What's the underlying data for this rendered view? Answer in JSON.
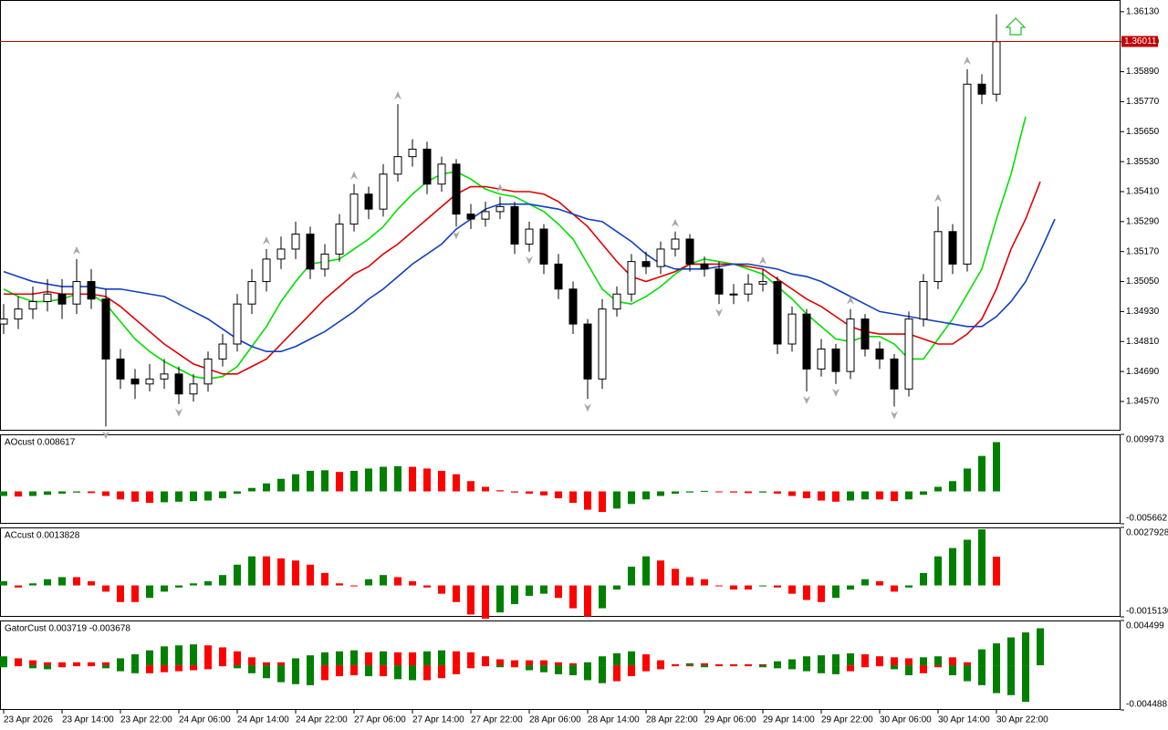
{
  "chart_data": [
    {
      "type": "candlestick",
      "categories": [
        "23 Apr 2026",
        null,
        null,
        null,
        "23 Apr 14:00",
        null,
        null,
        null,
        "23 Apr 22:00",
        null,
        null,
        null,
        "24 Apr 06:00",
        null,
        null,
        null,
        "24 Apr 14:00",
        null,
        null,
        null,
        "24 Apr 22:00",
        null,
        null,
        null,
        "27 Apr 06:00",
        null,
        null,
        null,
        "27 Apr 14:00",
        null,
        null,
        null,
        "27 Apr 22:00",
        null,
        null,
        null,
        "28 Apr 06:00",
        null,
        null,
        null,
        "28 Apr 14:00",
        null,
        null,
        null,
        "28 Apr 22:00",
        null,
        null,
        null,
        "29 Apr 06:00",
        null,
        null,
        null,
        "29 Apr 14:00",
        null,
        null,
        null,
        "29 Apr 22:00",
        null,
        null,
        null,
        "30 Apr 06:00",
        null,
        null,
        null,
        "30 Apr 14:00",
        null,
        null,
        null,
        "30 Apr 22:00",
        null,
        null,
        null,
        null
      ],
      "open": [
        1.3488,
        1.349,
        1.3494,
        1.3497,
        1.35,
        1.3496,
        1.3505,
        1.3498,
        1.3474,
        1.3466,
        1.3464,
        1.3466,
        1.3468,
        1.346,
        1.3464,
        1.3474,
        1.348,
        1.3496,
        1.3505,
        1.3514,
        1.3518,
        1.3524,
        1.351,
        1.3516,
        1.3528,
        1.354,
        1.3534,
        1.3548,
        1.3555,
        1.3558,
        1.3544,
        1.3552,
        1.3532,
        1.353,
        1.3533,
        1.3535,
        1.352,
        1.3526,
        1.3512,
        1.3502,
        1.3488,
        1.3466,
        1.3494,
        1.35,
        1.3513,
        1.3511,
        1.3518,
        1.3522,
        1.3512,
        1.351,
        1.35,
        1.35,
        1.3504,
        1.3505,
        1.348,
        1.3492,
        1.347,
        1.3478,
        1.3469,
        1.349,
        1.3478,
        1.3474,
        1.3462,
        1.349,
        1.3505,
        1.3525,
        1.3512,
        1.3584,
        1.358,
        null,
        null,
        null,
        null
      ],
      "high": [
        1.3496,
        1.3499,
        1.3503,
        1.3506,
        1.3506,
        1.3514,
        1.351,
        1.3502,
        1.3478,
        1.347,
        1.3472,
        1.3474,
        1.3471,
        1.3468,
        1.3477,
        1.3484,
        1.35,
        1.351,
        1.3518,
        1.3523,
        1.3529,
        1.3527,
        1.352,
        1.3532,
        1.3544,
        1.3543,
        1.3552,
        1.3576,
        1.3562,
        1.3561,
        1.3555,
        1.3554,
        1.3536,
        1.3537,
        1.3539,
        1.3537,
        1.3529,
        1.3528,
        1.3516,
        1.3505,
        1.349,
        1.3498,
        1.3503,
        1.3516,
        1.3517,
        1.3521,
        1.3525,
        1.3524,
        1.3515,
        1.3513,
        1.3504,
        1.3508,
        1.351,
        1.3507,
        1.3495,
        1.3494,
        1.3482,
        1.348,
        1.3494,
        1.3492,
        1.3481,
        1.3476,
        1.3493,
        1.3508,
        1.3535,
        1.3528,
        1.359,
        1.3588,
        1.3612,
        null,
        null,
        null,
        null
      ],
      "low": [
        1.3484,
        1.3486,
        1.349,
        1.3493,
        1.349,
        1.3492,
        1.3494,
        1.3447,
        1.3462,
        1.3458,
        1.3461,
        1.3462,
        1.3456,
        1.3457,
        1.3461,
        1.3471,
        1.3477,
        1.3492,
        1.3501,
        1.351,
        1.3514,
        1.3506,
        1.3507,
        1.3513,
        1.3525,
        1.353,
        1.3531,
        1.3545,
        1.3551,
        1.354,
        1.3541,
        1.3527,
        1.3526,
        1.3527,
        1.353,
        1.3516,
        1.3517,
        1.3508,
        1.3498,
        1.3484,
        1.3458,
        1.3462,
        1.3491,
        1.3497,
        1.3508,
        1.3508,
        1.3515,
        1.3509,
        1.3507,
        1.3496,
        1.3496,
        1.3497,
        1.3501,
        1.3476,
        1.3477,
        1.3461,
        1.3467,
        1.3464,
        1.3466,
        1.3475,
        1.347,
        1.3455,
        1.3459,
        1.3487,
        1.3502,
        1.3508,
        1.3509,
        1.3576,
        1.3577,
        null,
        null,
        null,
        null
      ],
      "close": [
        1.349,
        1.3494,
        1.3497,
        1.35,
        1.3496,
        1.3505,
        1.3498,
        1.3474,
        1.3466,
        1.3464,
        1.3466,
        1.3468,
        1.346,
        1.3464,
        1.3474,
        1.348,
        1.3496,
        1.3505,
        1.3514,
        1.3518,
        1.3524,
        1.351,
        1.3516,
        1.3528,
        1.354,
        1.3534,
        1.3548,
        1.3555,
        1.3558,
        1.3544,
        1.3552,
        1.3532,
        1.353,
        1.3533,
        1.3535,
        1.352,
        1.3526,
        1.3512,
        1.3502,
        1.3488,
        1.3466,
        1.3494,
        1.35,
        1.3513,
        1.3511,
        1.3518,
        1.3522,
        1.3512,
        1.351,
        1.35,
        1.35,
        1.3504,
        1.3505,
        1.348,
        1.3492,
        1.347,
        1.3478,
        1.3469,
        1.349,
        1.3478,
        1.3474,
        1.3462,
        1.349,
        1.3505,
        1.3525,
        1.3512,
        1.3584,
        1.358,
        1.3601,
        null,
        null,
        null,
        null
      ],
      "series": [
        {
          "color": "#00e000",
          "values": [
            1.3502,
            1.3499,
            1.3497,
            1.3497,
            1.3498,
            1.35,
            1.35,
            1.3496,
            1.3489,
            1.3482,
            1.3477,
            1.3473,
            1.347,
            1.3467,
            1.3466,
            1.3467,
            1.3471,
            1.3479,
            1.3487,
            1.3497,
            1.3505,
            1.3512,
            1.3513,
            1.3514,
            1.3518,
            1.3522,
            1.3527,
            1.3534,
            1.354,
            1.3545,
            1.3548,
            1.3549,
            1.3546,
            1.3542,
            1.354,
            1.3539,
            1.3536,
            1.3533,
            1.3528,
            1.3522,
            1.3512,
            1.3502,
            1.3497,
            1.3496,
            1.3499,
            1.3503,
            1.3508,
            1.3512,
            1.3514,
            1.3513,
            1.3512,
            1.351,
            1.3508,
            1.3503,
            1.3498,
            1.3492,
            1.3487,
            1.3482,
            1.3481,
            1.3483,
            1.3483,
            1.348,
            1.3474,
            1.3474,
            1.3482,
            1.349,
            1.35,
            1.351,
            1.353,
            1.3548,
            1.3571,
            null,
            null
          ]
        },
        {
          "color": "#e00000",
          "values": [
            1.35,
            1.35,
            1.35,
            1.3501,
            1.35,
            1.35,
            1.35,
            1.3499,
            1.3495,
            1.349,
            1.3485,
            1.348,
            1.3476,
            1.3472,
            1.347,
            1.3468,
            1.3468,
            1.3471,
            1.3474,
            1.348,
            1.3486,
            1.3492,
            1.3498,
            1.3503,
            1.3508,
            1.3511,
            1.3516,
            1.352,
            1.3525,
            1.353,
            1.3535,
            1.354,
            1.3543,
            1.3543,
            1.3542,
            1.3541,
            1.3541,
            1.354,
            1.3537,
            1.3532,
            1.3527,
            1.352,
            1.3513,
            1.3507,
            1.3505,
            1.3507,
            1.3509,
            1.3512,
            1.3512,
            1.3512,
            1.3512,
            1.3511,
            1.351,
            1.3506,
            1.3502,
            1.3498,
            1.3495,
            1.3491,
            1.3487,
            1.3485,
            1.3484,
            1.3484,
            1.3484,
            1.3482,
            1.348,
            1.348,
            1.3484,
            1.349,
            1.3502,
            1.3518,
            1.353,
            1.3545,
            null
          ]
        },
        {
          "color": "#1040c0",
          "values": [
            1.3509,
            1.3507,
            1.3505,
            1.3504,
            1.3503,
            1.3503,
            1.3503,
            1.3502,
            1.3502,
            1.3501,
            1.35,
            1.3499,
            1.3496,
            1.3493,
            1.349,
            1.3486,
            1.3482,
            1.3479,
            1.3477,
            1.3477,
            1.3479,
            1.3482,
            1.3485,
            1.3489,
            1.3493,
            1.3498,
            1.3502,
            1.3507,
            1.3512,
            1.3516,
            1.352,
            1.3526,
            1.353,
            1.3534,
            1.3536,
            1.3536,
            1.3536,
            1.3535,
            1.3534,
            1.3532,
            1.353,
            1.3529,
            1.3525,
            1.3521,
            1.3516,
            1.3512,
            1.351,
            1.351,
            1.351,
            1.3511,
            1.3512,
            1.3512,
            1.3511,
            1.351,
            1.3508,
            1.3507,
            1.3505,
            1.3502,
            1.3499,
            1.3496,
            1.3493,
            1.3492,
            1.3491,
            1.349,
            1.3489,
            1.3488,
            1.3487,
            1.3487,
            1.3491,
            1.3497,
            1.3505,
            1.3517,
            1.353
          ]
        }
      ],
      "fractals_up": [
        5,
        18,
        24,
        27,
        34,
        46,
        52,
        58,
        64,
        66
      ],
      "fractals_down": [
        7,
        12,
        31,
        36,
        40,
        49,
        55,
        57,
        61
      ],
      "fractal_color": "#a8a8a8",
      "bull_color": "#ffffff",
      "bear_color": "#000000",
      "ylim": [
        1.34453,
        1.36177
      ],
      "yticks": [
        {
          "value": 1.3613,
          "label": "1.36130"
        },
        {
          "value": 1.3601,
          "label": "1.36010"
        },
        {
          "value": 1.3589,
          "label": "1.35890"
        },
        {
          "value": 1.3577,
          "label": "1.35770"
        },
        {
          "value": 1.3565,
          "label": "1.35650"
        },
        {
          "value": 1.3553,
          "label": "1.35530"
        },
        {
          "value": 1.3541,
          "label": "1.35410"
        },
        {
          "value": 1.3529,
          "label": "1.35290"
        },
        {
          "value": 1.3517,
          "label": "1.35170"
        },
        {
          "value": 1.3505,
          "label": "1.35050"
        },
        {
          "value": 1.3493,
          "label": "1.34930"
        },
        {
          "value": 1.3481,
          "label": "1.34810"
        },
        {
          "value": 1.3469,
          "label": "1.34690"
        },
        {
          "value": 1.3457,
          "label": "1.34570"
        }
      ],
      "current_price": 1.36011,
      "current_price_color": "#c00000"
    },
    {
      "type": "bar",
      "title": "AOcust 0.008617",
      "series": [
        {
          "values": [
            -0.0008,
            -0.0009,
            -0.0008,
            -0.0006,
            -0.0004,
            -0.0002,
            -0.0003,
            -0.0008,
            -0.0014,
            -0.0018,
            -0.002,
            -0.0019,
            -0.0018,
            -0.0017,
            -0.0016,
            -0.0012,
            -0.0004,
            0.0006,
            0.0014,
            0.0022,
            0.003,
            0.0036,
            0.0037,
            0.0034,
            0.0036,
            0.004,
            0.0043,
            0.0044,
            0.0043,
            0.004,
            0.0036,
            0.003,
            0.0018,
            0.0008,
            0.0002,
            -0.0002,
            -0.0004,
            -0.0007,
            -0.0012,
            -0.002,
            -0.0032,
            -0.0036,
            -0.003,
            -0.0022,
            -0.0014,
            -0.0008,
            -0.0004,
            -0.0002,
            0.0001,
            -0.0001,
            -0.0002,
            -0.0003,
            -0.0002,
            -0.0004,
            -0.0008,
            -0.0012,
            -0.0016,
            -0.0018,
            -0.0016,
            -0.0014,
            -0.0014,
            -0.0017,
            -0.0014,
            -0.0006,
            0.0008,
            0.0018,
            0.004,
            0.0062,
            0.008617
          ]
        }
      ],
      "up_color": "#008000",
      "down_color": "#ff0000",
      "ylim": [
        -0.005662,
        0.009973
      ],
      "yticks": [
        0.009973,
        -0.005662
      ]
    },
    {
      "type": "bar",
      "title": "ACcust 0.0013828",
      "series": [
        {
          "values": [
            0.0002,
            -0.0001,
            0.0001,
            0.0003,
            0.0004,
            0.0004,
            0.0002,
            -0.0003,
            -0.0008,
            -0.0008,
            -0.0006,
            -0.0003,
            -0.0001,
            0.0001,
            0.0002,
            0.0005,
            0.001,
            0.0014,
            0.0014,
            0.0013,
            0.0012,
            0.001,
            0.0006,
            0.0001,
            0,
            0.0003,
            0.0005,
            0.0004,
            0.0002,
            -0.0001,
            -0.0004,
            -0.0008,
            -0.0014,
            -0.0016,
            -0.0013,
            -0.0009,
            -0.0005,
            -0.0004,
            -0.0006,
            -0.0011,
            -0.0015,
            -0.0011,
            -0.0002,
            0.0009,
            0.0014,
            0.0012,
            0.0008,
            0.0004,
            0.0003,
            0,
            -0.0002,
            -0.0002,
            0,
            -0.0001,
            -0.0004,
            -0.0007,
            -0.0008,
            -0.0006,
            -0.0002,
            0.0003,
            0.0002,
            -0.0003,
            -0.0001,
            0.0006,
            0.0014,
            0.0018,
            0.0022,
            0.0027,
            0.0013828
          ]
        }
      ],
      "up_color": "#008000",
      "down_color": "#ff0000",
      "ylim": [
        -0.001513,
        0.0027928
      ],
      "yticks": [
        0.0027928,
        {
          "value": -0.001513,
          "label": "-0.0015130"
        }
      ]
    },
    {
      "type": "gator",
      "title": "GatorCust 0.003719 -0.003678",
      "series": [
        {
          "values": [
            0.0009,
            0.0007,
            0.0005,
            0.0003,
            0.0003,
            0.0003,
            0.0003,
            0.0003,
            0.0007,
            0.0011,
            0.0015,
            0.0019,
            0.002,
            0.0021,
            0.002,
            0.0018,
            0.0014,
            0.0008,
            0.0003,
            0.0003,
            0.0007,
            0.001,
            0.0013,
            0.0014,
            0.0015,
            0.0013,
            0.0014,
            0.0013,
            0.0013,
            0.0014,
            0.0015,
            0.0014,
            0.0013,
            0.0009,
            0.0006,
            0.0005,
            0.0005,
            0.0005,
            0.0003,
            0.0002,
            0.0003,
            0.0009,
            0.0012,
            0.0014,
            0.0011,
            0.0005,
            0.0001,
            0.0002,
            0.0002,
            0.0001,
            0.0001,
            0.0001,
            0.0001,
            0.0004,
            0.0006,
            0.0009,
            0.001,
            0.0011,
            0.0012,
            0.0011,
            0.0009,
            0.0008,
            0.0007,
            0.0008,
            0.0009,
            0.0008,
            0.0003,
            0.0016,
            0.0022,
            0.0028,
            0.0033,
            0.003719
          ]
        },
        {
          "values": [
            -0.0002,
            -0.0001,
            -0.0003,
            -0.0004,
            -0.0002,
            -0.0001,
            -0.0001,
            -0.0003,
            -0.0006,
            -0.0008,
            -0.0008,
            -0.0007,
            -0.0006,
            -0.0005,
            -0.0004,
            -0.0001,
            -0.0003,
            -0.0008,
            -0.0013,
            -0.0017,
            -0.0019,
            -0.002,
            -0.0015,
            -0.0011,
            -0.001,
            -0.0011,
            -0.0011,
            -0.0014,
            -0.0015,
            -0.0015,
            -0.0013,
            -0.0009,
            -0.0003,
            -0.0001,
            -0.0002,
            -0.0002,
            -0.0005,
            -0.0007,
            -0.0009,
            -0.001,
            -0.0015,
            -0.0018,
            -0.0016,
            -0.0011,
            -0.0006,
            -0.0004,
            -0.0001,
            -0.0001,
            -0.0002,
            -0.0001,
            -0.0001,
            -0.0001,
            -0.0002,
            -0.0003,
            -0.0004,
            -0.0006,
            -0.0008,
            -0.0009,
            -0.0006,
            -0.0002,
            -0.0001,
            -0.0004,
            -0.001,
            -0.0008,
            -0.0002,
            -0.001,
            -0.0016,
            -0.002,
            -0.0028,
            -0.003,
            -0.003678,
            null
          ]
        }
      ],
      "up_color": "#008000",
      "down_color": "#ff0000",
      "ylim": [
        -0.004488,
        0.004499
      ],
      "yticks": [
        0.004499,
        -0.004488
      ]
    }
  ]
}
